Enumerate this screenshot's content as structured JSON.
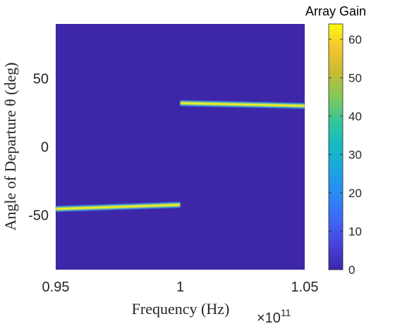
{
  "chart_data": {
    "type": "heatmap",
    "title": "",
    "xlabel": "Frequency (Hz)",
    "ylabel": "Angle of Departure θ (deg)",
    "x_multiplier_label": "×10",
    "x_multiplier_exponent": "11",
    "xlim": [
      0.95,
      1.05
    ],
    "ylim": [
      -90,
      90
    ],
    "x_ticks": [
      {
        "value": 0.95,
        "label": "0.95"
      },
      {
        "value": 1.0,
        "label": "1"
      },
      {
        "value": 1.05,
        "label": "1.05"
      }
    ],
    "y_ticks": [
      {
        "value": 50,
        "label": "50"
      },
      {
        "value": 0,
        "label": "0"
      },
      {
        "value": -50,
        "label": "-50"
      }
    ],
    "colorbar": {
      "title": "Array Gain",
      "range": [
        0,
        64
      ],
      "ticks": [
        0,
        10,
        20,
        30,
        40,
        50,
        60
      ],
      "tick_labels": [
        "0",
        "10",
        "20",
        "30",
        "40",
        "50",
        "60"
      ],
      "colormap": "parula"
    },
    "background_value": 0,
    "beams": [
      {
        "x_start": 0.95,
        "x_end": 1.0,
        "angle_start": -45.5,
        "angle_end": -42.5,
        "peak_gain": 64
      },
      {
        "x_start": 1.0,
        "x_end": 1.05,
        "angle_start": 32.0,
        "angle_end": 30.0,
        "peak_gain": 64
      }
    ],
    "grid": false
  },
  "colors": {
    "background_cell": "#3e26a8",
    "axis": "#262626"
  }
}
